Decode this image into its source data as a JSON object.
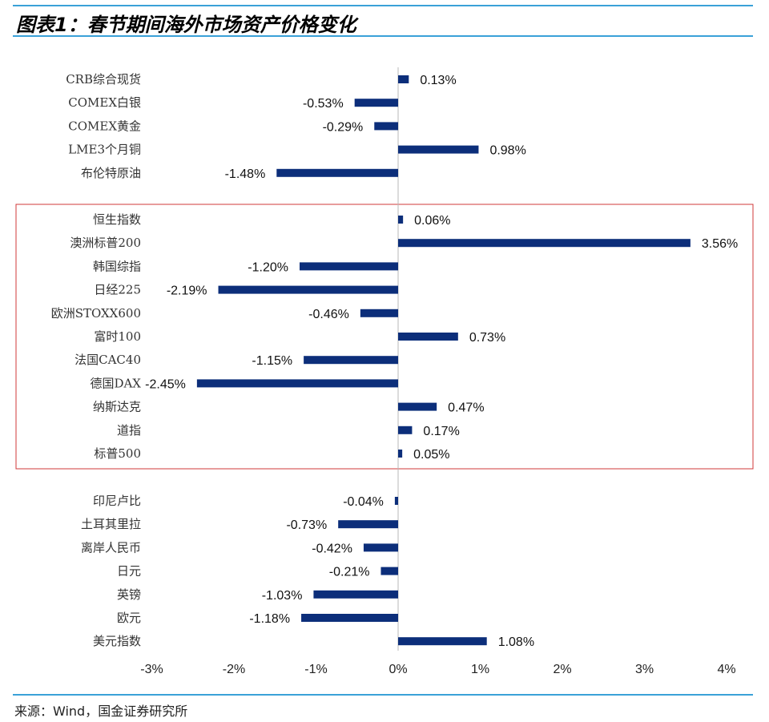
{
  "figure": {
    "title": "图表1：春节期间海外市场资产价格变化",
    "source": "来源：Wind，国金证券研究所"
  },
  "colors": {
    "bar": "#0c2e7a",
    "highlight_box": "#d0393a",
    "rule": "#3aa1d8",
    "axis": "#b8b8b8"
  },
  "chart_data": {
    "type": "bar",
    "orientation": "horizontal",
    "title": "春节期间海外市场资产价格变化",
    "xlabel": "",
    "ylabel": "",
    "xlim": [
      -3,
      4
    ],
    "x_ticks": [
      "-3%",
      "-2%",
      "-1%",
      "0%",
      "1%",
      "2%",
      "3%",
      "4%"
    ],
    "tick_values": [
      -3,
      -2,
      -1,
      0,
      1,
      2,
      3,
      4
    ],
    "unit": "%",
    "groups": [
      {
        "name": "commodities",
        "highlighted": false,
        "categories": [
          "CRB综合现货",
          "COMEX白银",
          "COMEX黄金",
          "LME3个月铜",
          "布伦特原油"
        ],
        "values": [
          0.13,
          -0.53,
          -0.29,
          0.98,
          -1.48
        ],
        "labels": [
          "0.13%",
          "-0.53%",
          "-0.29%",
          "0.98%",
          "-1.48%"
        ]
      },
      {
        "name": "equity_indices",
        "highlighted": true,
        "categories": [
          "恒生指数",
          "澳洲标普200",
          "韩国综指",
          "日经225",
          "欧洲STOXX600",
          "富时100",
          "法国CAC40",
          "德国DAX",
          "纳斯达克",
          "道指",
          "标普500"
        ],
        "values": [
          0.06,
          3.56,
          -1.2,
          -2.19,
          -0.46,
          0.73,
          -1.15,
          -2.45,
          0.47,
          0.17,
          0.05
        ],
        "labels": [
          "0.06%",
          "3.56%",
          "-1.20%",
          "-2.19%",
          "-0.46%",
          "0.73%",
          "-1.15%",
          "-2.45%",
          "0.47%",
          "0.17%",
          "0.05%"
        ]
      },
      {
        "name": "currencies",
        "highlighted": false,
        "categories": [
          "印尼卢比",
          "土耳其里拉",
          "离岸人民币",
          "日元",
          "英镑",
          "欧元",
          "美元指数"
        ],
        "values": [
          -0.04,
          -0.73,
          -0.42,
          -0.21,
          -1.03,
          -1.18,
          1.08
        ],
        "labels": [
          "-0.04%",
          "-0.73%",
          "-0.42%",
          "-0.21%",
          "-1.03%",
          "-1.18%",
          "1.08%"
        ]
      }
    ]
  }
}
